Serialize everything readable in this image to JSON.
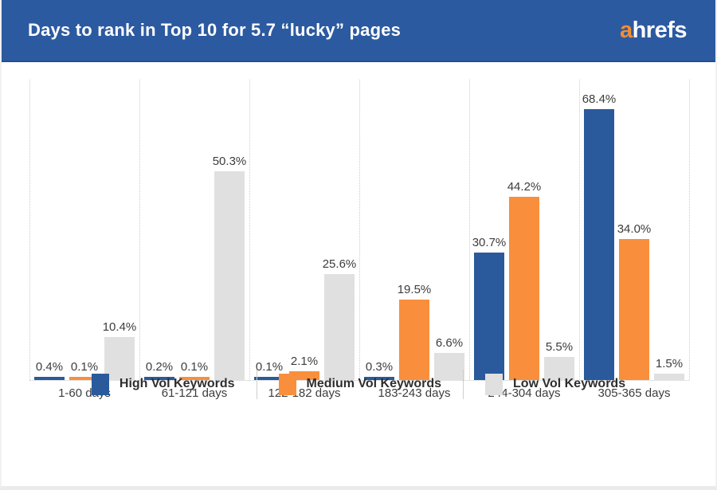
{
  "header": {
    "title": "Days to rank in Top 10 for 5.7 “lucky” pages",
    "logo": {
      "prefix": "a",
      "rest": "hrefs"
    }
  },
  "colors": {
    "header_bg": "#2c5aa0",
    "header_border": "#1e4e96",
    "logo_accent": "#f28d33",
    "high_vol": "#2a5a9c",
    "medium_vol": "#f98f3c",
    "low_vol": "#e0e0e0",
    "gridline": "#cccccc",
    "label_text": "#3d3d3d"
  },
  "chart_data": {
    "type": "bar",
    "title": "Days to rank in Top 10 for 5.7 “lucky” pages",
    "xlabel": "",
    "ylabel": "",
    "ylim": [
      0,
      75
    ],
    "grid": "vertical-dotted",
    "legend_position": "bottom",
    "value_label_suffix": "%",
    "categories": [
      "1-60 days",
      "61-121 days",
      "122-182 days",
      "183-243 days",
      "244-304 days",
      "305-365 days"
    ],
    "series": [
      {
        "name": "High Vol Keywords",
        "color": "#2a5a9c",
        "values": [
          0.4,
          0.2,
          0.1,
          0.3,
          30.7,
          68.4
        ]
      },
      {
        "name": "Medium Vol Keywords",
        "color": "#f98f3c",
        "values": [
          0.1,
          0.1,
          2.1,
          19.5,
          44.2,
          34.0
        ]
      },
      {
        "name": "Low Vol Keywords",
        "color": "#e0e0e0",
        "values": [
          10.4,
          50.3,
          25.6,
          6.6,
          5.5,
          1.5
        ]
      }
    ]
  }
}
